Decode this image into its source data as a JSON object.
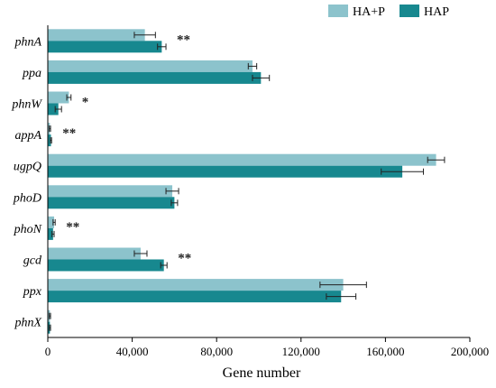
{
  "chart_data": {
    "type": "bar",
    "orientation": "horizontal",
    "categories": [
      "phnA",
      "ppa",
      "phnW",
      "appA",
      "ugpQ",
      "phoD",
      "phoN",
      "gcd",
      "ppx",
      "phnX"
    ],
    "series": [
      {
        "name": "HA+P",
        "color": "#8cc3cc",
        "values": [
          46000,
          97000,
          10000,
          1000,
          184000,
          59000,
          3000,
          44000,
          140000,
          1000
        ],
        "errors": [
          5000,
          2000,
          1000,
          300,
          4000,
          3000,
          500,
          3000,
          11000,
          300
        ]
      },
      {
        "name": "HAP",
        "color": "#17888f",
        "values": [
          54000,
          101000,
          5000,
          1500,
          168000,
          60000,
          2500,
          55000,
          139000,
          1000
        ],
        "errors": [
          2000,
          4000,
          1500,
          300,
          10000,
          1500,
          500,
          1500,
          7000,
          300
        ]
      }
    ],
    "significance": [
      "**",
      "",
      "*",
      "**",
      "",
      "",
      "**",
      "**",
      "",
      ""
    ],
    "xlabel": "Gene number",
    "xlim": [
      0,
      200000
    ],
    "xticks": [
      0,
      40000,
      80000,
      120000,
      160000,
      200000
    ],
    "xtick_labels": [
      "0",
      "40,000",
      "80,000",
      "120,000",
      "160,000",
      "200,000"
    ],
    "grid": false,
    "legend_position": "top-right"
  }
}
